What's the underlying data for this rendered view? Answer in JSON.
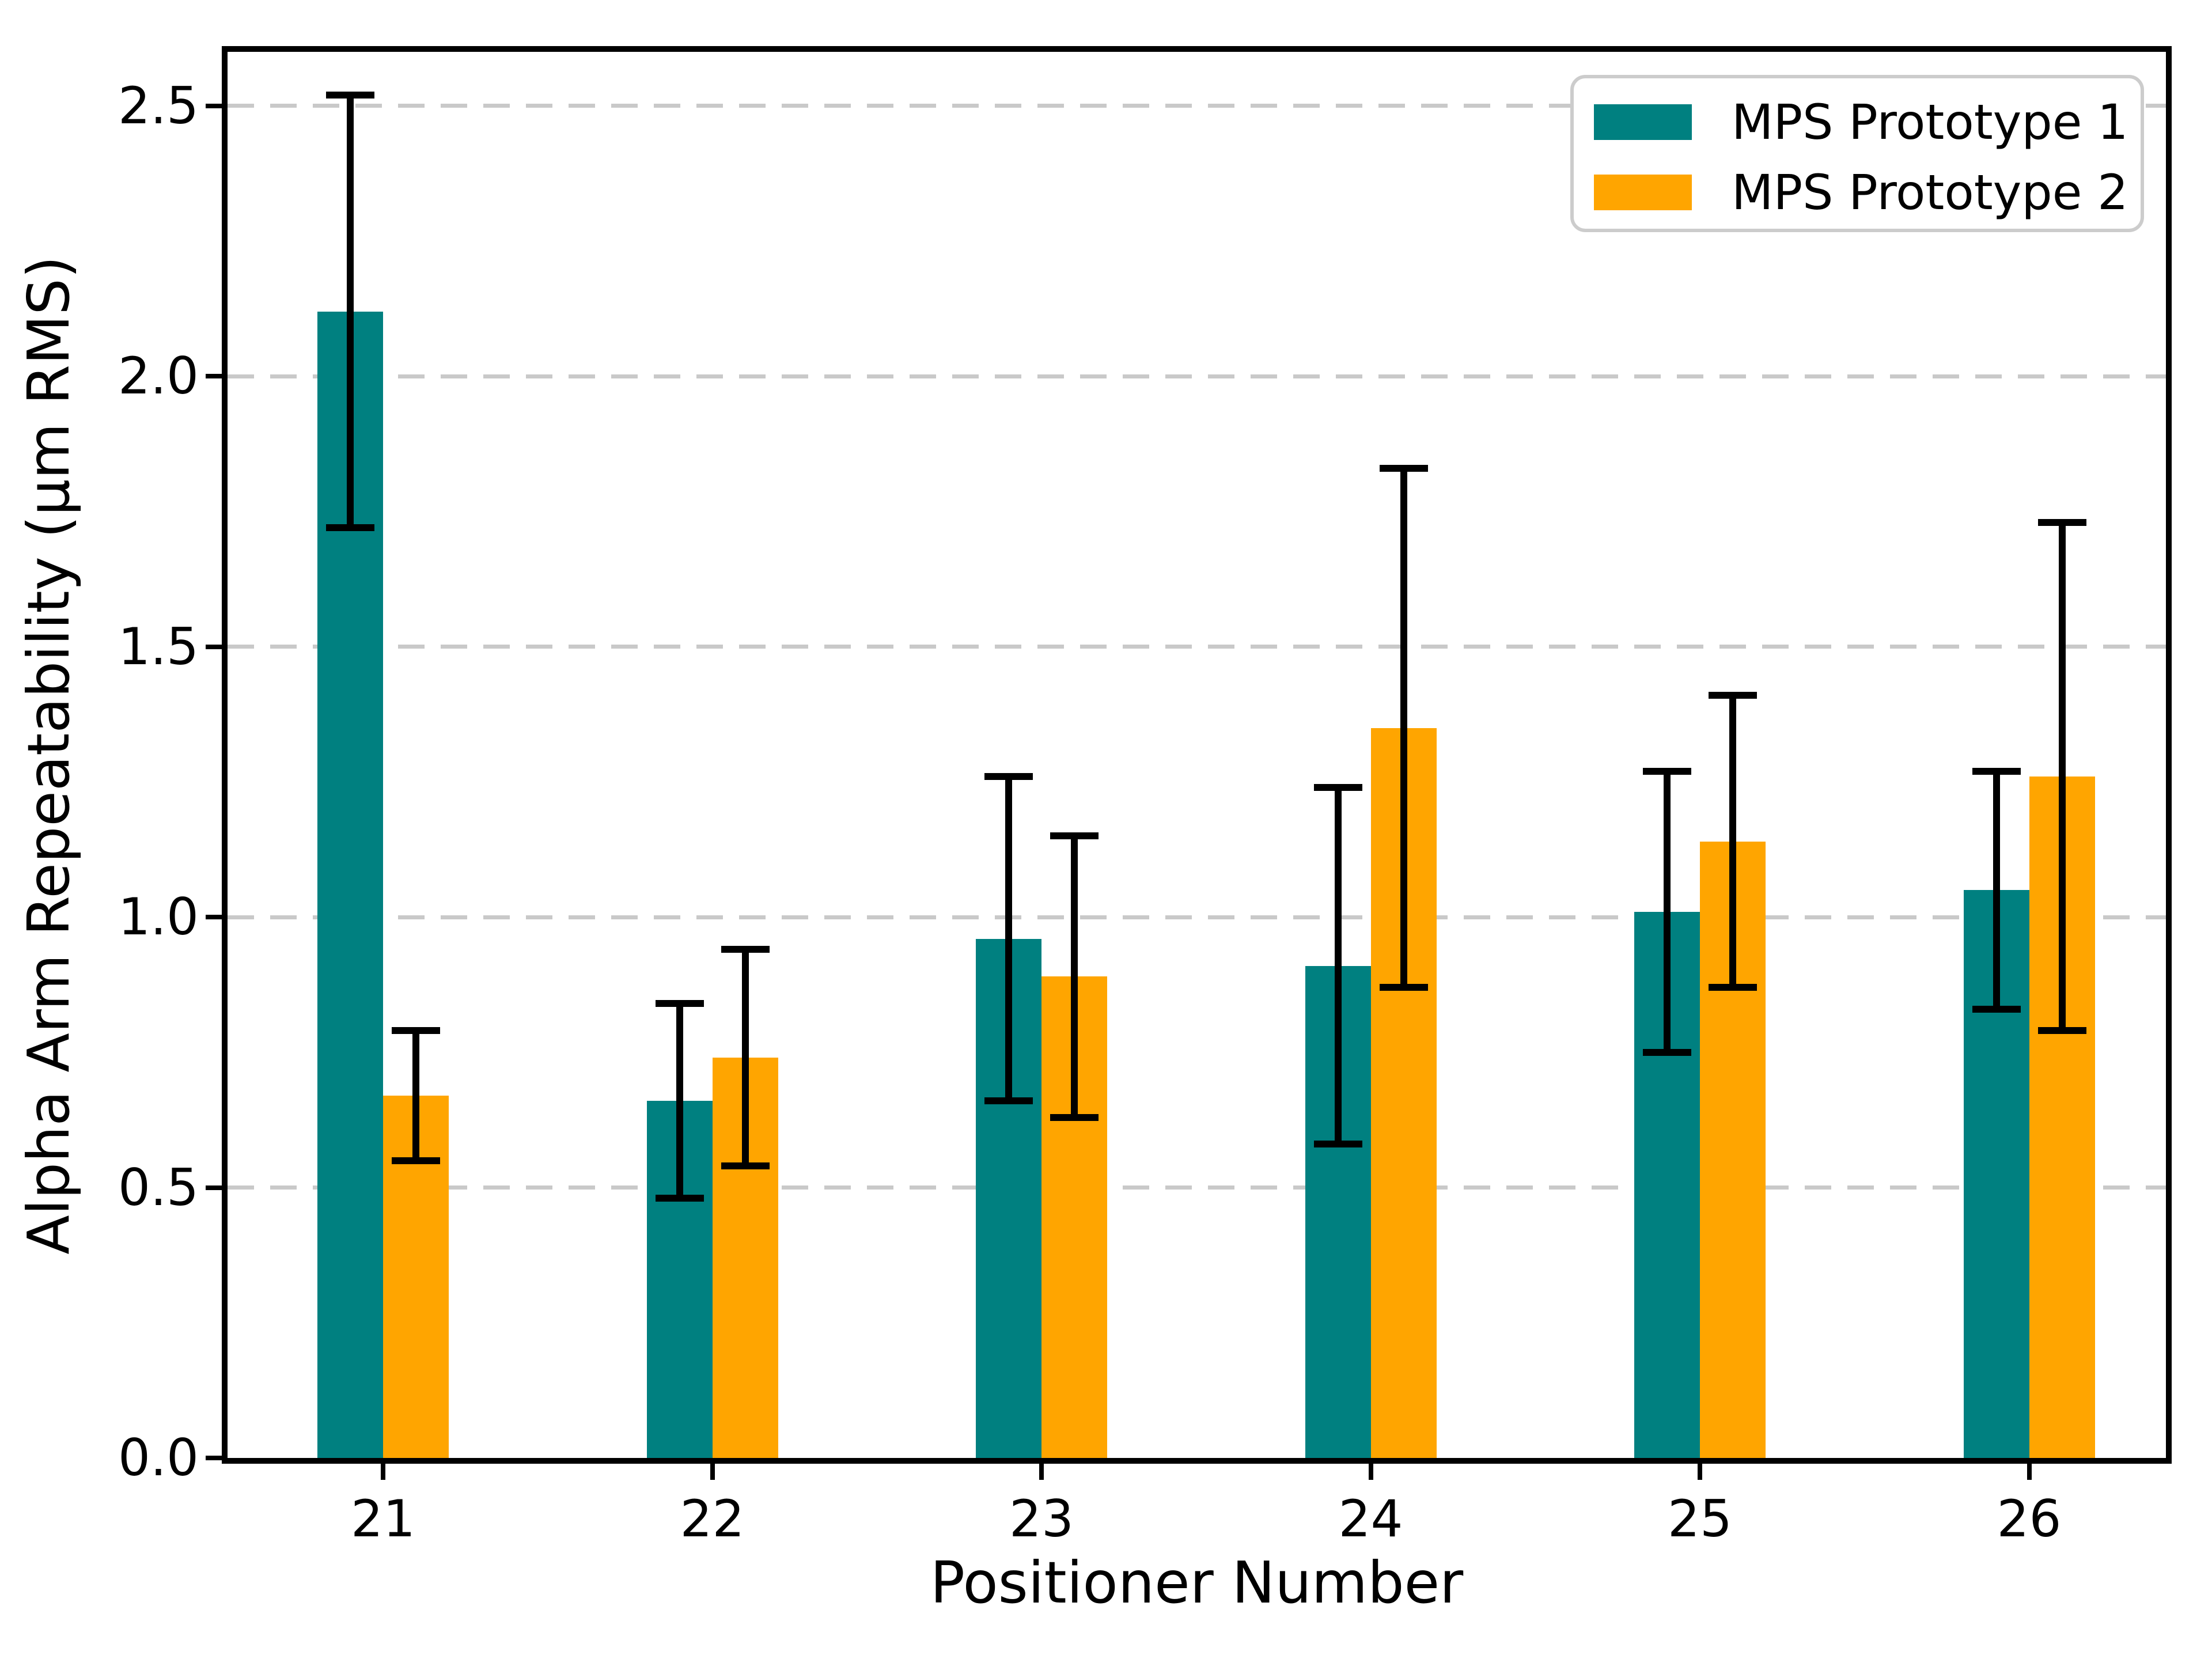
{
  "chart_data": {
    "type": "bar",
    "title": "",
    "xlabel": "Positioner Number",
    "ylabel": "Alpha Arm Repeatability (μm RMS)",
    "categories": [
      "21",
      "22",
      "23",
      "24",
      "25",
      "26"
    ],
    "series": [
      {
        "name": "MPS Prototype 1",
        "color": "#008080",
        "values": [
          2.12,
          0.66,
          0.96,
          0.91,
          1.01,
          1.05
        ],
        "errors": [
          0.4,
          0.18,
          0.3,
          0.33,
          0.26,
          0.22
        ]
      },
      {
        "name": "MPS Prototype 2",
        "color": "#FFA500",
        "values": [
          0.67,
          0.74,
          0.89,
          1.35,
          1.14,
          1.26
        ],
        "errors": [
          0.12,
          0.2,
          0.26,
          0.48,
          0.27,
          0.47
        ]
      }
    ],
    "ylim": [
      0,
      2.6
    ],
    "yticks": [
      0.0,
      0.5,
      1.0,
      1.5,
      2.0,
      2.5
    ],
    "ytick_labels": [
      "0.0",
      "0.5",
      "1.0",
      "1.5",
      "2.0",
      "2.5"
    ],
    "grid": "horizontal-dashed",
    "gridline_color": "#c9c9c9",
    "errorbar_color": "#000000",
    "legend_position": "upper-right"
  },
  "legend": {
    "items": [
      {
        "label": "MPS Prototype 1",
        "color": "#008080"
      },
      {
        "label": "MPS Prototype 2",
        "color": "#FFA500"
      }
    ]
  }
}
